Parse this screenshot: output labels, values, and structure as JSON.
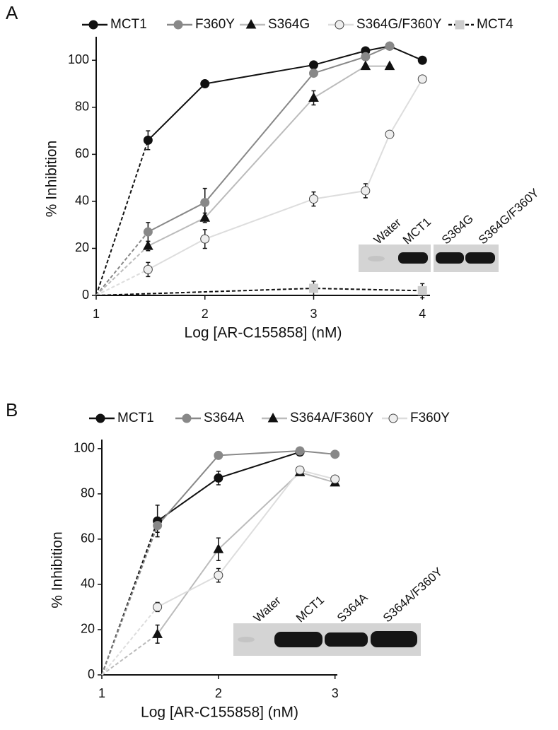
{
  "chart_data": [
    {
      "type": "line",
      "panel": "A",
      "xlabel": "Log [AR-C155858] (nM)",
      "ylabel": "% Inhibition",
      "xlim": [
        1,
        4.07
      ],
      "xticks": [
        1,
        2,
        3,
        4
      ],
      "ylim": [
        0,
        110
      ],
      "yticks": [
        0,
        20,
        40,
        60,
        80,
        100
      ],
      "inset_labels": [
        "Water",
        "MCT1",
        "S364G",
        "S364G/F360Y"
      ],
      "series": [
        {
          "name": "MCT1",
          "color": "#111111",
          "marker": "circle",
          "marker_color": "#111111",
          "dash": "first",
          "x": [
            1,
            1.477,
            2,
            3,
            3.477,
            3.699,
            4
          ],
          "values": [
            0,
            66,
            90,
            98,
            104,
            106,
            100
          ],
          "errors": [
            null,
            4,
            1.5,
            null,
            null,
            null,
            null
          ]
        },
        {
          "name": "F360Y",
          "color": "#888888",
          "marker": "circle",
          "marker_color": "#888888",
          "dash": "first",
          "x": [
            1,
            1.477,
            2,
            3,
            3.477,
            3.699
          ],
          "values": [
            0,
            27,
            39.5,
            94.5,
            101.5,
            106
          ],
          "errors": [
            null,
            4,
            6,
            null,
            null,
            null
          ]
        },
        {
          "name": "S364G",
          "color": "#bbbbbb",
          "marker": "triangle",
          "marker_color": "#111111",
          "dash": "first",
          "x": [
            1,
            1.477,
            2,
            3,
            3.477,
            3.699
          ],
          "values": [
            0,
            21,
            33,
            84,
            97.5,
            97.5
          ],
          "errors": [
            null,
            2,
            2,
            3,
            null,
            null
          ]
        },
        {
          "name": "S364G/F360Y",
          "color": "#dddddd",
          "marker": "open-circle",
          "marker_color": "#eeeeee",
          "dash": "first",
          "x": [
            1,
            1.477,
            2,
            3,
            3.477,
            3.699,
            4
          ],
          "values": [
            0,
            11,
            24,
            41,
            44.5,
            68.5,
            92
          ],
          "errors": [
            null,
            3,
            4,
            3,
            3,
            null,
            null
          ]
        },
        {
          "name": "MCT4",
          "color": "#111111",
          "marker": "square",
          "marker_color": "#cccccc",
          "dash": "all",
          "x": [
            1,
            3,
            4
          ],
          "values": [
            0,
            3,
            2
          ],
          "errors": [
            null,
            3,
            3
          ]
        }
      ]
    },
    {
      "type": "line",
      "panel": "B",
      "xlabel": "Log [AR-C155858] (nM)",
      "ylabel": "% Inhibition",
      "xlim": [
        1,
        3.02
      ],
      "xticks": [
        1,
        2,
        3
      ],
      "ylim": [
        0,
        104
      ],
      "yticks": [
        0,
        20,
        40,
        60,
        80,
        100
      ],
      "inset_labels": [
        "Water",
        "MCT1",
        "S364A",
        "S364A/F360Y"
      ],
      "series": [
        {
          "name": "MCT1",
          "color": "#111111",
          "marker": "circle",
          "marker_color": "#111111",
          "dash": "first",
          "x": [
            1,
            1.477,
            2,
            2.699
          ],
          "values": [
            0,
            68,
            87,
            98.5
          ],
          "errors": [
            null,
            7,
            3,
            null
          ]
        },
        {
          "name": "S364A",
          "color": "#888888",
          "marker": "circle",
          "marker_color": "#888888",
          "dash": "first",
          "x": [
            1,
            1.477,
            2,
            2.699,
            3
          ],
          "values": [
            0,
            66,
            97,
            99,
            97.5
          ],
          "errors": [
            null,
            3,
            null,
            null,
            null
          ]
        },
        {
          "name": "S364A/F360Y",
          "color": "#bbbbbb",
          "marker": "triangle",
          "marker_color": "#111111",
          "dash": "first",
          "x": [
            1,
            1.477,
            2,
            2.699,
            3
          ],
          "values": [
            0,
            18,
            55.5,
            89.5,
            85
          ],
          "errors": [
            null,
            4,
            5,
            null,
            null
          ]
        },
        {
          "name": "F360Y",
          "color": "#dddddd",
          "marker": "open-circle",
          "marker_color": "#eeeeee",
          "dash": "first",
          "x": [
            1,
            1.477,
            2,
            2.699,
            3
          ],
          "values": [
            0,
            30,
            44,
            90.5,
            86.5
          ],
          "errors": [
            null,
            2,
            3,
            null,
            null
          ]
        }
      ]
    }
  ]
}
